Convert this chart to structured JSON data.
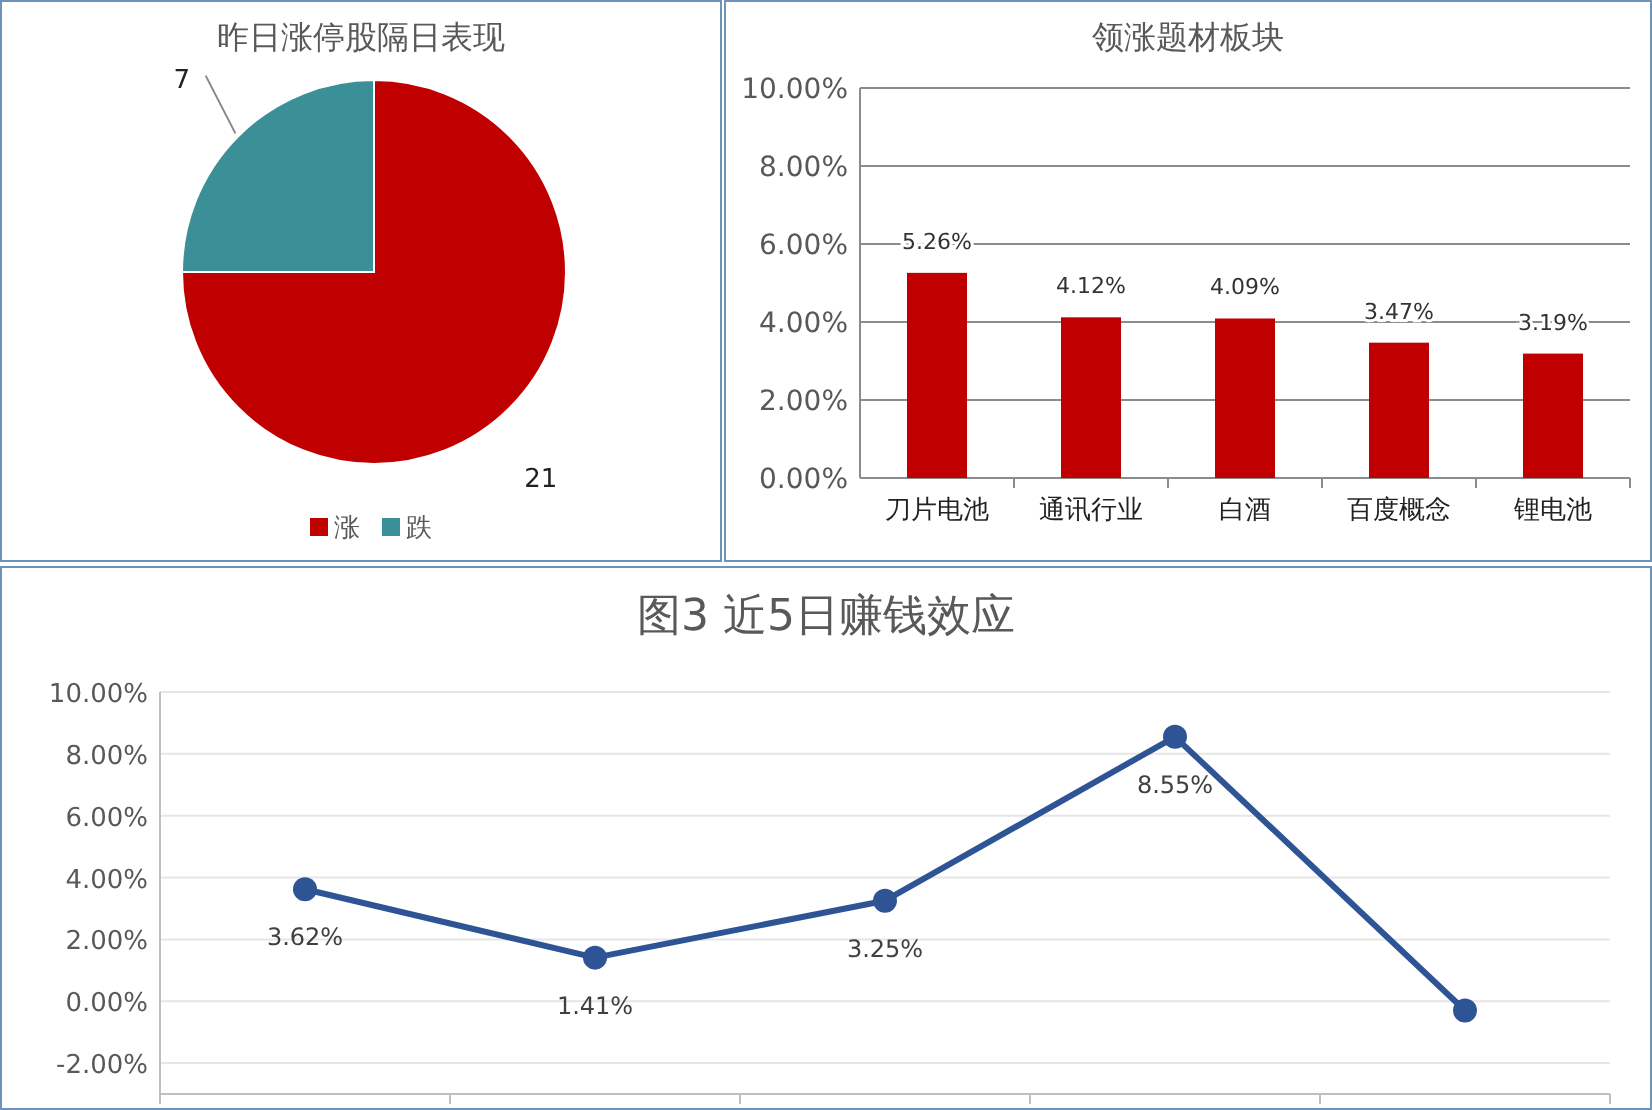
{
  "chart_data": [
    {
      "type": "pie",
      "title": "昨日涨停股隔日表现",
      "categories": [
        "涨",
        "跌"
      ],
      "values": [
        21,
        7
      ],
      "colors": [
        "#c00000",
        "#3b8f96"
      ],
      "data_labels": true,
      "legend": "bottom"
    },
    {
      "type": "bar",
      "title": "领涨题材板块",
      "categories": [
        "刀片电池",
        "通讯行业",
        "白酒",
        "百度概念",
        "锂电池"
      ],
      "values": [
        5.26,
        4.12,
        4.09,
        3.47,
        3.19
      ],
      "color": "#c00000",
      "value_labels": [
        "5.26%",
        "4.12%",
        "4.09%",
        "3.47%",
        "3.19%"
      ],
      "ylim": [
        0,
        10
      ],
      "yticks": [
        {
          "value": 0,
          "label": "0.00%"
        },
        {
          "value": 2,
          "label": "2.00%"
        },
        {
          "value": 4,
          "label": "4.00%"
        },
        {
          "value": 6,
          "label": "6.00%"
        },
        {
          "value": 8,
          "label": "8.00%"
        },
        {
          "value": 10,
          "label": "10.00%"
        }
      ],
      "grid": "y"
    },
    {
      "type": "line",
      "title": "图3 近5日赚钱效应",
      "categories": [
        null,
        null,
        null,
        null,
        null
      ],
      "series": [
        {
          "color": "#2f5496",
          "values": [
            3.62,
            1.41,
            3.25,
            8.55,
            -0.3
          ]
        }
      ],
      "value_labels": [
        "3.62%",
        "1.41%",
        "3.25%",
        "8.55%",
        null
      ],
      "ylim": [
        -3,
        10
      ],
      "yticks": [
        {
          "value": -2,
          "label": "-2.00%"
        },
        {
          "value": 0,
          "label": "0.00%"
        },
        {
          "value": 2,
          "label": "2.00%"
        },
        {
          "value": 4,
          "label": "4.00%"
        },
        {
          "value": 6,
          "label": "6.00%"
        },
        {
          "value": 8,
          "label": "8.00%"
        },
        {
          "value": 10,
          "label": "10.00%"
        }
      ],
      "grid": "y",
      "marker": "circle",
      "line_style": "solid"
    }
  ]
}
